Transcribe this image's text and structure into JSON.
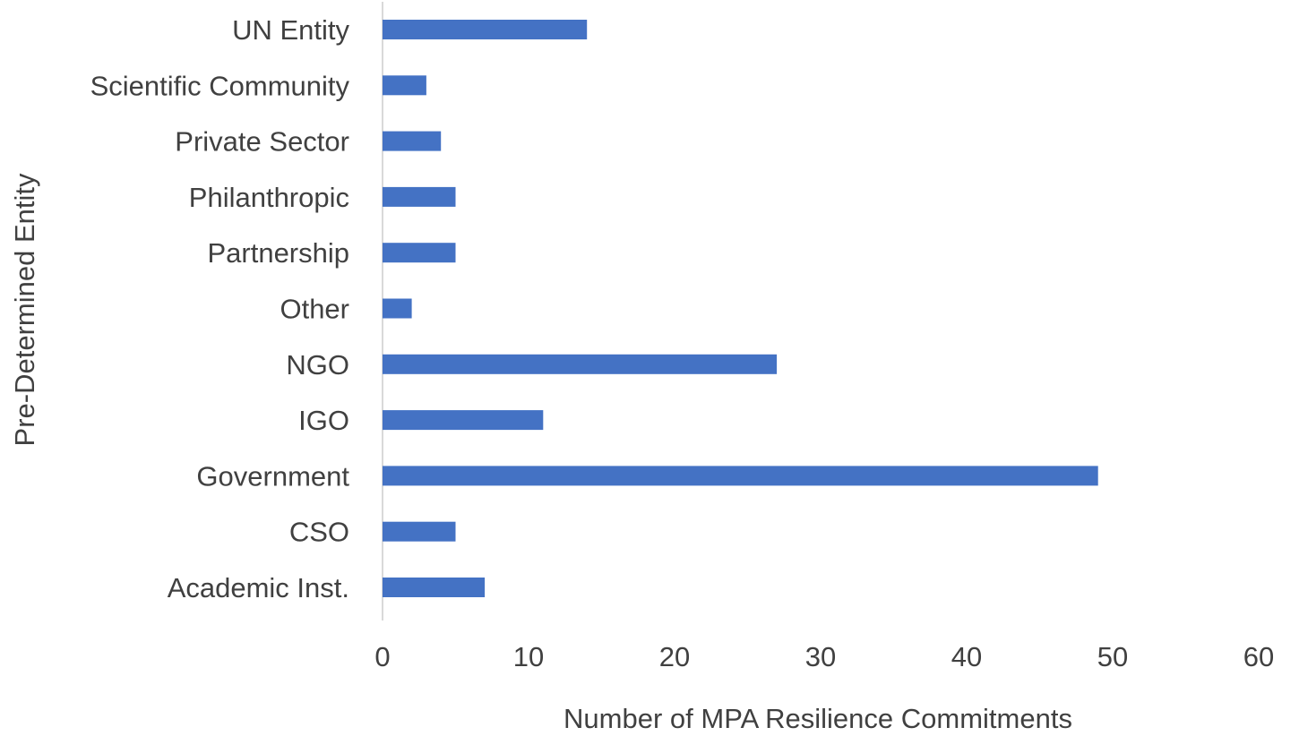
{
  "chart_data": {
    "type": "bar",
    "orientation": "horizontal",
    "categories": [
      "UN Entity",
      "Scientific Community",
      "Private Sector",
      "Philanthropic",
      "Partnership",
      "Other",
      "NGO",
      "IGO",
      "Government",
      "CSO",
      "Academic Inst."
    ],
    "values": [
      14,
      3,
      4,
      5,
      5,
      2,
      27,
      11,
      49,
      5,
      7
    ],
    "x_ticks": [
      "0",
      "10",
      "20",
      "30",
      "40",
      "50",
      "60"
    ],
    "xlim": [
      0,
      60
    ],
    "xlabel": "Number  of MPA Resilience Commitments",
    "ylabel": "Pre-Determined Entity",
    "grid": false,
    "legend": "none",
    "bar_color": "#4472C4",
    "axis_color": "#D9D9D9",
    "text_color": "#404040"
  }
}
